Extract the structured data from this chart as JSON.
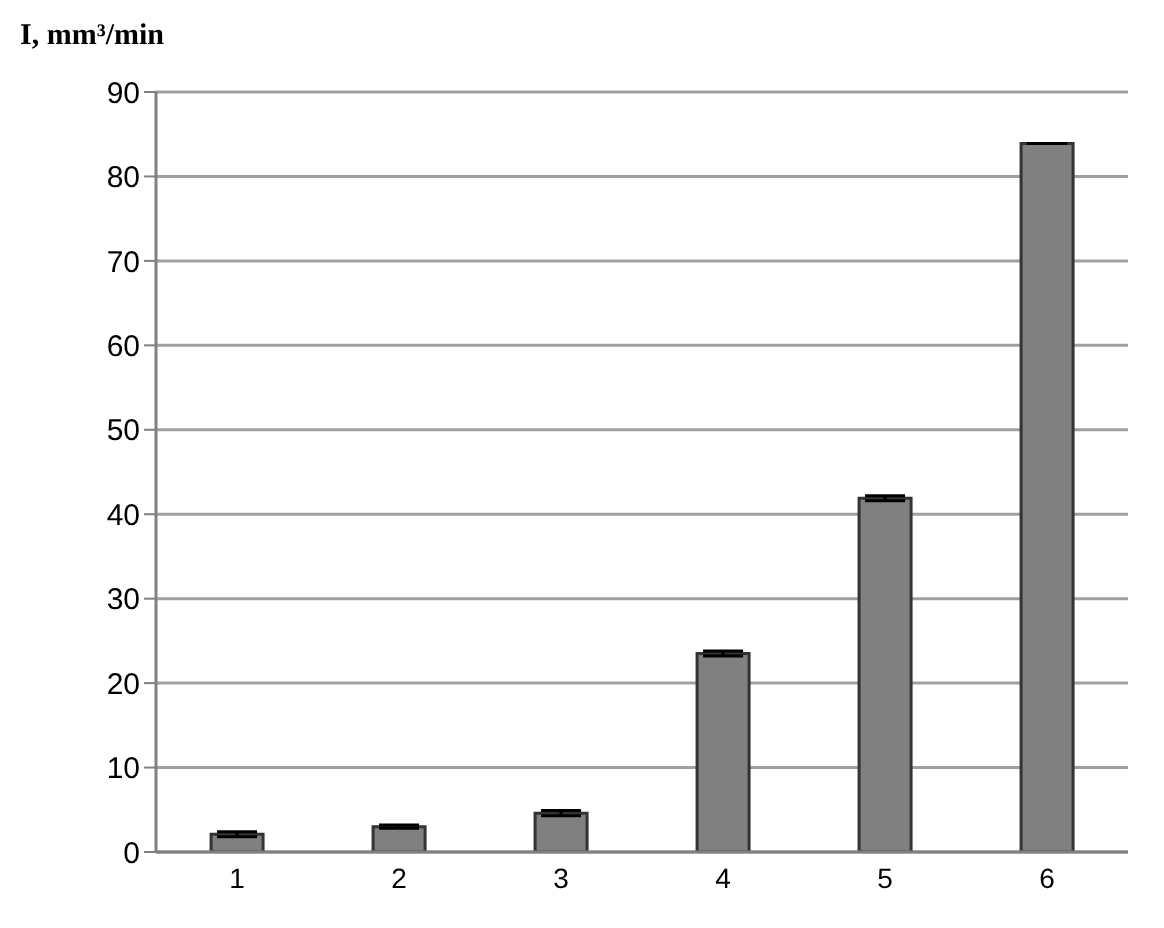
{
  "chart_data": {
    "type": "bar",
    "ylabel": "I, mm³/min",
    "categories": [
      "1",
      "2",
      "3",
      "4",
      "5",
      "6"
    ],
    "values": [
      2.1,
      3.0,
      4.6,
      23.5,
      41.9,
      83.9
    ],
    "errors": [
      0.3,
      0.2,
      0.3,
      0.3,
      0.3,
      null
    ],
    "color": "#808080",
    "ylim": [
      0,
      90
    ],
    "yticks": [
      0,
      10,
      20,
      30,
      40,
      50,
      60,
      70,
      80,
      90
    ],
    "grid": "y"
  }
}
